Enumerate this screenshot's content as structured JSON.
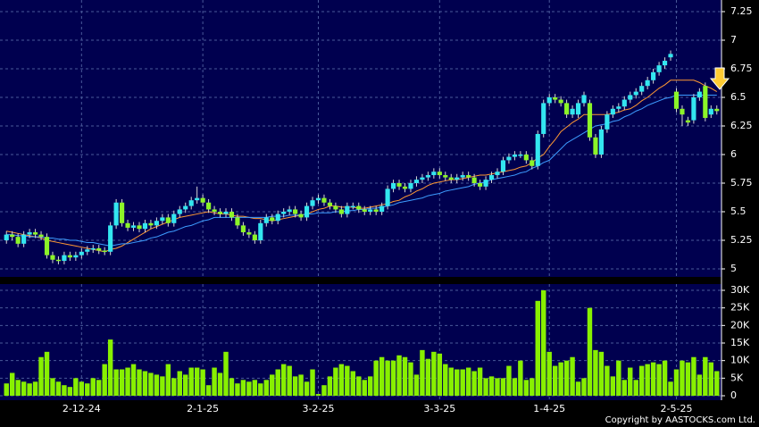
{
  "chart_data": {
    "type": "candlestick",
    "categories": [
      null,
      null,
      null,
      null,
      null,
      null,
      null,
      null,
      null,
      null,
      null,
      null,
      null,
      "2-12-24",
      null,
      null,
      null,
      null,
      null,
      null,
      null,
      null,
      null,
      null,
      null,
      null,
      null,
      null,
      null,
      null,
      null,
      null,
      null,
      null,
      "2-1-25",
      null,
      null,
      null,
      null,
      null,
      null,
      null,
      null,
      null,
      null,
      null,
      null,
      null,
      null,
      null,
      null,
      null,
      null,
      null,
      "3-2-25",
      null,
      null,
      null,
      null,
      null,
      null,
      null,
      null,
      null,
      null,
      null,
      null,
      null,
      null,
      null,
      null,
      null,
      null,
      null,
      null,
      "3-3-25",
      null,
      null,
      null,
      null,
      null,
      null,
      null,
      null,
      null,
      null,
      null,
      null,
      null,
      null,
      null,
      null,
      null,
      null,
      "1-4-25",
      null,
      null,
      null,
      null,
      null,
      null,
      null,
      null,
      null,
      null,
      null,
      null,
      null,
      null,
      null,
      null,
      null,
      null,
      null,
      null,
      null,
      "2-5-25",
      null,
      null,
      null,
      null,
      null,
      null,
      null
    ],
    "candles": [
      [
        5.25,
        5.33,
        5.22,
        5.3
      ],
      [
        5.3,
        5.33,
        5.25,
        5.28
      ],
      [
        5.28,
        5.31,
        5.19,
        5.22
      ],
      [
        5.22,
        5.33,
        5.19,
        5.3
      ],
      [
        5.3,
        5.35,
        5.27,
        5.32
      ],
      [
        5.32,
        5.35,
        5.27,
        5.3
      ],
      [
        5.3,
        5.33,
        5.25,
        5.28
      ],
      [
        5.28,
        5.31,
        5.09,
        5.12
      ],
      [
        5.12,
        5.15,
        5.05,
        5.08
      ],
      [
        5.08,
        5.11,
        5.04,
        5.07
      ],
      [
        5.07,
        5.15,
        5.04,
        5.12
      ],
      [
        5.12,
        5.15,
        5.07,
        5.1
      ],
      [
        5.1,
        5.15,
        5.07,
        5.12
      ],
      [
        5.12,
        5.18,
        5.09,
        5.15
      ],
      [
        5.15,
        5.2,
        5.12,
        5.17
      ],
      [
        5.17,
        5.21,
        5.14,
        5.18
      ],
      [
        5.18,
        5.21,
        5.13,
        5.16
      ],
      [
        5.16,
        5.19,
        5.12,
        5.15
      ],
      [
        5.15,
        5.41,
        5.12,
        5.38
      ],
      [
        5.38,
        5.61,
        5.35,
        5.58
      ],
      [
        5.58,
        5.61,
        5.37,
        5.4
      ],
      [
        5.4,
        5.43,
        5.33,
        5.36
      ],
      [
        5.36,
        5.41,
        5.33,
        5.38
      ],
      [
        5.38,
        5.41,
        5.32,
        5.35
      ],
      [
        5.35,
        5.43,
        5.32,
        5.4
      ],
      [
        5.4,
        5.43,
        5.35,
        5.38
      ],
      [
        5.38,
        5.45,
        5.35,
        5.42
      ],
      [
        5.42,
        5.48,
        5.39,
        5.45
      ],
      [
        5.45,
        5.48,
        5.37,
        5.4
      ],
      [
        5.4,
        5.51,
        5.37,
        5.48
      ],
      [
        5.48,
        5.55,
        5.45,
        5.52
      ],
      [
        5.52,
        5.58,
        5.49,
        5.55
      ],
      [
        5.55,
        5.63,
        5.52,
        5.6
      ],
      [
        5.6,
        5.72,
        5.57,
        5.62
      ],
      [
        5.62,
        5.65,
        5.55,
        5.58
      ],
      [
        5.58,
        5.61,
        5.49,
        5.52
      ],
      [
        5.52,
        5.55,
        5.47,
        5.5
      ],
      [
        5.5,
        5.53,
        5.45,
        5.48
      ],
      [
        5.48,
        5.53,
        5.45,
        5.5
      ],
      [
        5.5,
        5.53,
        5.42,
        5.45
      ],
      [
        5.45,
        5.48,
        5.35,
        5.38
      ],
      [
        5.38,
        5.41,
        5.29,
        5.32
      ],
      [
        5.32,
        5.35,
        5.27,
        5.3
      ],
      [
        5.3,
        5.33,
        5.22,
        5.25
      ],
      [
        5.25,
        5.43,
        5.22,
        5.4
      ],
      [
        5.4,
        5.48,
        5.37,
        5.45
      ],
      [
        5.45,
        5.48,
        5.39,
        5.42
      ],
      [
        5.42,
        5.51,
        5.39,
        5.48
      ],
      [
        5.48,
        5.53,
        5.45,
        5.5
      ],
      [
        5.5,
        5.55,
        5.47,
        5.52
      ],
      [
        5.52,
        5.55,
        5.45,
        5.48
      ],
      [
        5.48,
        5.51,
        5.42,
        5.45
      ],
      [
        5.45,
        5.58,
        5.42,
        5.55
      ],
      [
        5.55,
        5.63,
        5.52,
        5.6
      ],
      [
        5.6,
        5.65,
        5.57,
        5.62
      ],
      [
        5.62,
        5.65,
        5.55,
        5.58
      ],
      [
        5.58,
        5.61,
        5.52,
        5.55
      ],
      [
        5.55,
        5.58,
        5.49,
        5.52
      ],
      [
        5.52,
        5.55,
        5.45,
        5.48
      ],
      [
        5.48,
        5.58,
        5.45,
        5.55
      ],
      [
        5.55,
        5.58,
        5.52,
        5.55
      ],
      [
        5.55,
        5.58,
        5.49,
        5.52
      ],
      [
        5.52,
        5.55,
        5.47,
        5.5
      ],
      [
        5.5,
        5.55,
        5.47,
        5.52
      ],
      [
        5.52,
        5.55,
        5.47,
        5.5
      ],
      [
        5.5,
        5.58,
        5.47,
        5.55
      ],
      [
        5.55,
        5.73,
        5.52,
        5.7
      ],
      [
        5.7,
        5.78,
        5.67,
        5.75
      ],
      [
        5.75,
        5.78,
        5.69,
        5.72
      ],
      [
        5.72,
        5.75,
        5.67,
        5.7
      ],
      [
        5.7,
        5.78,
        5.67,
        5.75
      ],
      [
        5.75,
        5.81,
        5.72,
        5.78
      ],
      [
        5.78,
        5.83,
        5.75,
        5.8
      ],
      [
        5.8,
        5.85,
        5.77,
        5.82
      ],
      [
        5.82,
        5.88,
        5.79,
        5.85
      ],
      [
        5.85,
        5.88,
        5.79,
        5.82
      ],
      [
        5.82,
        5.85,
        5.77,
        5.8
      ],
      [
        5.8,
        5.83,
        5.75,
        5.78
      ],
      [
        5.78,
        5.83,
        5.75,
        5.8
      ],
      [
        5.8,
        5.85,
        5.77,
        5.82
      ],
      [
        5.82,
        5.85,
        5.77,
        5.8
      ],
      [
        5.8,
        5.83,
        5.72,
        5.75
      ],
      [
        5.75,
        5.78,
        5.69,
        5.72
      ],
      [
        5.72,
        5.81,
        5.69,
        5.78
      ],
      [
        5.78,
        5.85,
        5.75,
        5.82
      ],
      [
        5.82,
        5.88,
        5.79,
        5.85
      ],
      [
        5.85,
        5.98,
        5.82,
        5.95
      ],
      [
        5.95,
        6.01,
        5.92,
        5.98
      ],
      [
        5.98,
        6.03,
        5.95,
        6.0
      ],
      [
        6.0,
        6.03,
        5.97,
        6.0
      ],
      [
        6.0,
        6.03,
        5.92,
        5.95
      ],
      [
        5.95,
        5.98,
        5.87,
        5.9
      ],
      [
        5.9,
        6.21,
        5.87,
        6.18
      ],
      [
        6.18,
        6.48,
        6.15,
        6.45
      ],
      [
        6.45,
        6.53,
        6.42,
        6.5
      ],
      [
        6.5,
        6.53,
        6.45,
        6.48
      ],
      [
        6.48,
        6.51,
        6.42,
        6.45
      ],
      [
        6.45,
        6.48,
        6.32,
        6.35
      ],
      [
        6.35,
        6.43,
        6.32,
        6.4
      ],
      [
        6.35,
        6.48,
        6.32,
        6.45
      ],
      [
        6.45,
        6.55,
        6.42,
        6.52
      ],
      [
        6.45,
        6.48,
        6.12,
        6.15
      ],
      [
        6.15,
        6.18,
        5.97,
        6.0
      ],
      [
        6.0,
        6.25,
        5.97,
        6.22
      ],
      [
        6.22,
        6.38,
        6.19,
        6.35
      ],
      [
        6.35,
        6.43,
        6.32,
        6.4
      ],
      [
        6.4,
        6.45,
        6.37,
        6.42
      ],
      [
        6.42,
        6.51,
        6.39,
        6.48
      ],
      [
        6.48,
        6.55,
        6.45,
        6.52
      ],
      [
        6.52,
        6.58,
        6.49,
        6.55
      ],
      [
        6.55,
        6.63,
        6.52,
        6.6
      ],
      [
        6.6,
        6.68,
        6.57,
        6.65
      ],
      [
        6.65,
        6.75,
        6.62,
        6.72
      ],
      [
        6.72,
        6.81,
        6.69,
        6.78
      ],
      [
        6.78,
        6.85,
        6.75,
        6.82
      ],
      [
        6.85,
        6.91,
        6.82,
        6.88
      ],
      [
        6.55,
        6.58,
        6.37,
        6.4
      ],
      [
        6.4,
        6.43,
        6.25,
        6.35
      ],
      [
        6.3,
        6.33,
        6.25,
        6.28
      ],
      [
        6.3,
        6.53,
        6.27,
        6.5
      ],
      [
        6.5,
        6.58,
        6.47,
        6.55
      ],
      [
        6.6,
        6.63,
        6.29,
        6.32
      ],
      [
        6.35,
        6.43,
        6.32,
        6.4
      ],
      [
        6.4,
        6.43,
        6.35,
        6.38
      ]
    ],
    "up_color": "#33e6f0",
    "down_color": "#8cf528",
    "ylim": [
      5,
      7.25
    ],
    "yticks": [
      5,
      5.25,
      5.5,
      5.75,
      6,
      6.25,
      6.5,
      6.75,
      7,
      7.25
    ],
    "grid": true,
    "lines": [
      {
        "color": "#ff9933",
        "values": [
          5.33,
          5.32,
          5.31,
          5.3,
          5.29,
          5.28,
          5.27,
          5.25,
          5.24,
          5.23,
          5.22,
          5.21,
          5.2,
          5.19,
          5.18,
          5.17,
          5.16,
          5.15,
          5.17,
          5.18,
          5.2,
          5.23,
          5.26,
          5.29,
          5.32,
          5.35,
          5.37,
          5.39,
          5.41,
          5.43,
          5.45,
          5.46,
          5.47,
          5.48,
          5.49,
          5.5,
          5.49,
          5.48,
          5.48,
          5.47,
          5.46,
          5.46,
          5.45,
          5.44,
          5.44,
          5.43,
          5.42,
          5.43,
          5.44,
          5.45,
          5.46,
          5.47,
          5.48,
          5.5,
          5.52,
          5.53,
          5.55,
          5.55,
          5.54,
          5.54,
          5.54,
          5.53,
          5.53,
          5.54,
          5.55,
          5.56,
          5.57,
          5.59,
          5.6,
          5.63,
          5.65,
          5.68,
          5.7,
          5.73,
          5.75,
          5.76,
          5.77,
          5.78,
          5.78,
          5.79,
          5.8,
          5.81,
          5.82,
          5.82,
          5.83,
          5.84,
          5.85,
          5.86,
          5.87,
          5.89,
          5.9,
          5.93,
          5.97,
          6.0,
          6.07,
          6.13,
          6.2,
          6.24,
          6.28,
          6.31,
          6.35,
          6.35,
          6.35,
          6.35,
          6.35,
          6.36,
          6.37,
          6.39,
          6.4,
          6.43,
          6.47,
          6.5,
          6.54,
          6.58,
          6.61,
          6.65,
          6.65,
          6.65,
          6.65,
          6.65,
          6.63,
          6.6,
          6.58,
          6.55
        ]
      },
      {
        "color": "#3d9cff",
        "values": [
          5.3,
          5.3,
          5.29,
          5.29,
          5.28,
          5.28,
          5.28,
          5.27,
          5.27,
          5.26,
          5.26,
          5.25,
          5.25,
          5.24,
          5.23,
          5.23,
          5.22,
          5.21,
          5.2,
          5.21,
          5.22,
          5.22,
          5.23,
          5.24,
          5.25,
          5.27,
          5.28,
          5.3,
          5.32,
          5.33,
          5.35,
          5.37,
          5.38,
          5.4,
          5.42,
          5.43,
          5.45,
          5.45,
          5.45,
          5.45,
          5.45,
          5.45,
          5.45,
          5.45,
          5.45,
          5.45,
          5.46,
          5.46,
          5.46,
          5.47,
          5.47,
          5.47,
          5.48,
          5.48,
          5.49,
          5.49,
          5.49,
          5.5,
          5.5,
          5.51,
          5.51,
          5.52,
          5.52,
          5.53,
          5.53,
          5.54,
          5.55,
          5.56,
          5.58,
          5.59,
          5.6,
          5.61,
          5.62,
          5.64,
          5.65,
          5.66,
          5.68,
          5.69,
          5.7,
          5.71,
          5.72,
          5.74,
          5.75,
          5.76,
          5.78,
          5.79,
          5.8,
          5.81,
          5.82,
          5.84,
          5.85,
          5.88,
          5.9,
          5.93,
          5.95,
          6.0,
          6.05,
          6.1,
          6.13,
          6.16,
          6.19,
          6.22,
          6.25,
          6.26,
          6.27,
          6.29,
          6.3,
          6.33,
          6.35,
          6.38,
          6.4,
          6.43,
          6.45,
          6.47,
          6.49,
          6.5,
          6.52,
          6.52,
          6.52,
          6.52,
          6.52,
          6.52,
          6.52,
          6.52
        ]
      }
    ],
    "volume": {
      "type": "bar",
      "color": "#88f000",
      "values": [
        3500,
        6500,
        4500,
        4000,
        3500,
        4000,
        11000,
        12500,
        5000,
        4000,
        3000,
        2500,
        5000,
        4000,
        3500,
        5000,
        4500,
        9000,
        16000,
        7500,
        7500,
        8000,
        9000,
        7500,
        7000,
        6500,
        6000,
        5500,
        9000,
        5000,
        7000,
        6000,
        8000,
        8000,
        7500,
        3000,
        8000,
        6500,
        12500,
        5000,
        3500,
        4500,
        4000,
        4500,
        3500,
        4500,
        6000,
        7500,
        9000,
        8500,
        5500,
        6000,
        4000,
        7500,
        500,
        3000,
        5500,
        8000,
        9000,
        8500,
        7000,
        5500,
        4500,
        5500,
        10000,
        11000,
        10000,
        10000,
        11500,
        11000,
        9500,
        6000,
        13000,
        10500,
        12500,
        12000,
        9000,
        8000,
        7500,
        7500,
        8000,
        7000,
        8000,
        5000,
        5500,
        5000,
        5000,
        8500,
        5000,
        10000,
        4500,
        5000,
        27000,
        30000,
        12500,
        8500,
        9500,
        10000,
        11000,
        4000,
        5000,
        25000,
        13000,
        12500,
        8500,
        5500,
        10000,
        4500,
        8000,
        4500,
        8500,
        9000,
        9500,
        9000,
        10000,
        4000,
        7500,
        10000,
        9500,
        11000,
        6000,
        11000,
        9500,
        7000
      ],
      "ylim": [
        0,
        30000
      ],
      "yticks": [
        0,
        {
          "value": 5000,
          "label": "5K"
        },
        {
          "value": 10000,
          "label": "10K"
        },
        {
          "value": 15000,
          "label": "15K"
        },
        {
          "value": 20000,
          "label": "20K"
        },
        {
          "value": 25000,
          "label": "25K"
        },
        {
          "value": 30000,
          "label": "30K"
        }
      ]
    }
  },
  "footer": {
    "copyright": "Copyright by AASTOCKS.com Ltd."
  }
}
